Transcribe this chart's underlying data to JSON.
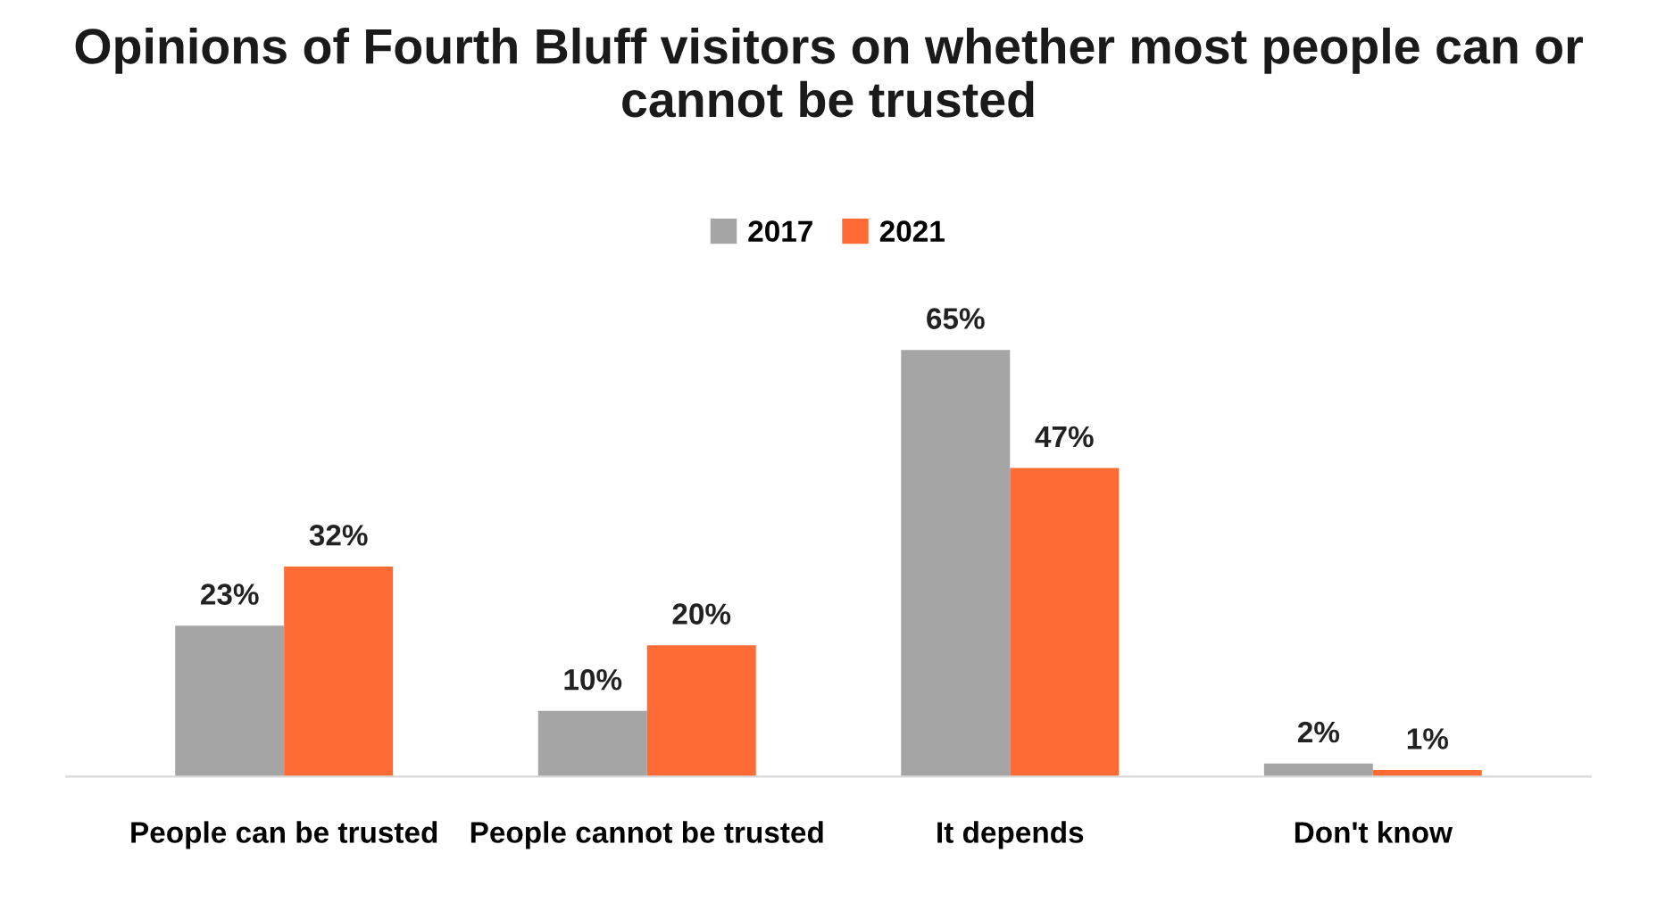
{
  "chart_data": {
    "type": "bar",
    "title": "Opinions of Fourth Bluff visitors on whether most people can or cannot be trusted",
    "categories": [
      "People can be trusted",
      "People cannot be trusted",
      "It depends",
      "Don't know"
    ],
    "series": [
      {
        "name": "2017",
        "color": "#a5a5a5",
        "values": [
          23,
          10,
          65,
          2
        ],
        "value_labels": [
          "23%",
          "10%",
          "65%",
          "2%"
        ]
      },
      {
        "name": "2021",
        "color": "#ff6b35",
        "values": [
          32,
          20,
          47,
          1
        ],
        "value_labels": [
          "32%",
          "20%",
          "47%",
          "1%"
        ]
      }
    ],
    "legend": "top",
    "grid": false
  }
}
